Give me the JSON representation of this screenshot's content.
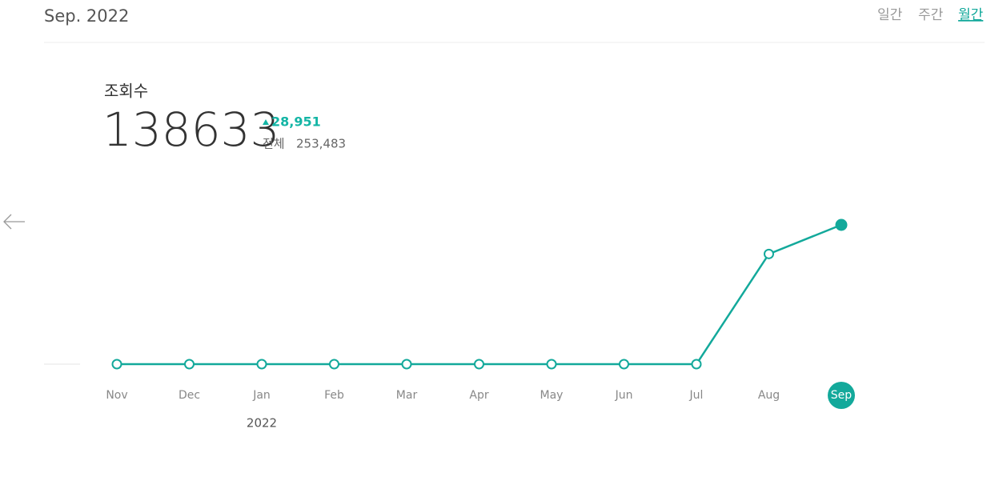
{
  "header": {
    "title": "Sep. 2022",
    "tabs": [
      "일간",
      "주간",
      "월간"
    ],
    "active_tab": 2
  },
  "summary": {
    "label": "조회수",
    "value": "138633",
    "change": "28,951",
    "total_label": "전체",
    "total": "253,483"
  },
  "chart_data": {
    "type": "line",
    "categories": [
      "Nov",
      "Dec",
      "Jan",
      "Feb",
      "Mar",
      "Apr",
      "May",
      "Jun",
      "Jul",
      "Aug",
      "Sep"
    ],
    "year_labels": [
      null,
      null,
      "2022",
      null,
      null,
      null,
      null,
      null,
      null,
      null,
      null
    ],
    "series": [
      {
        "name": "조회수",
        "color": "#13a99b",
        "values": [
          0,
          0,
          0,
          0,
          0,
          0,
          0,
          0,
          0,
          109682,
          138633
        ]
      }
    ],
    "selected": 10,
    "ylim": [
      0,
      150000
    ]
  }
}
